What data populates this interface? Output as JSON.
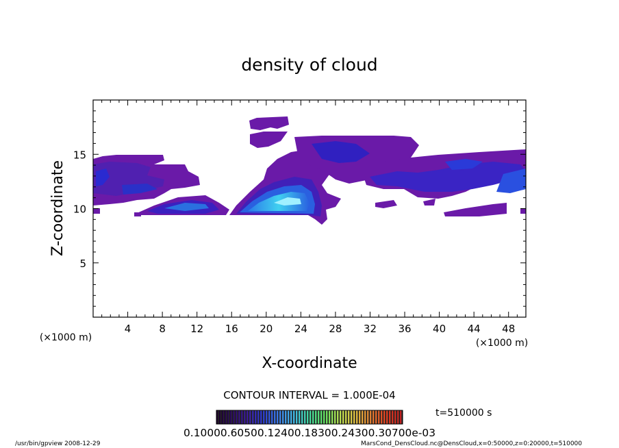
{
  "chart_data": {
    "type": "heatmap",
    "title": "density of cloud",
    "xlabel": "X-coordinate",
    "ylabel": "Z-coordinate",
    "x_unit": "(×1000 m)",
    "y_unit": "(×1000 m)",
    "xlim": [
      0,
      50
    ],
    "ylim": [
      0,
      20
    ],
    "x_ticks": [
      "4",
      "8",
      "12",
      "16",
      "20",
      "24",
      "28",
      "32",
      "36",
      "40",
      "44",
      "48"
    ],
    "y_ticks": [
      "5",
      "10",
      "15"
    ],
    "contour_interval_label": "CONTOUR INTERVAL = 1.000E-04",
    "time_label": "t=510000 s",
    "colorbar_labels": "0.10000.60500.12400.18300.24300.30700e-03",
    "colormap": [
      "#1a0026",
      "#2a0a5e",
      "#3a1a9a",
      "#2a3ad0",
      "#3a7ae8",
      "#40b8e8",
      "#40d8a0",
      "#60e060",
      "#b8e050",
      "#e0c040",
      "#e08030",
      "#e04020",
      "#c02020"
    ],
    "cloud_colors": {
      "thin": "#6a1aa8",
      "thin2": "#5a20b8",
      "mid": "#2a2ad8",
      "dense": "#2a7ae8",
      "core": "#3ad0f0",
      "peak": "#9af0ff"
    },
    "regions": [
      {
        "level": "thin",
        "z_range": [
          10.5,
          14.8
        ],
        "x_range": [
          0,
          12
        ]
      },
      {
        "level": "thin",
        "z_range": [
          9.6,
          11.5
        ],
        "x_range": [
          5,
          16
        ]
      },
      {
        "level": "mid",
        "z_range": [
          9.8,
          10.8
        ],
        "x_range": [
          8,
          15
        ]
      },
      {
        "level": "thin",
        "z_range": [
          9.6,
          15.5
        ],
        "x_range": [
          16,
          30
        ]
      },
      {
        "level": "dense",
        "z_range": [
          9.7,
          12.5
        ],
        "x_range": [
          17,
          26
        ]
      },
      {
        "level": "core",
        "z_range": [
          10.3,
          11.4
        ],
        "x_range": [
          19,
          25
        ]
      },
      {
        "level": "thin",
        "z_range": [
          16.8,
          18.0
        ],
        "x_range": [
          18,
          22
        ]
      },
      {
        "level": "thin",
        "z_range": [
          10.5,
          16.3
        ],
        "x_range": [
          20,
          37
        ]
      },
      {
        "level": "thin",
        "z_range": [
          9.5,
          15.2
        ],
        "x_range": [
          38,
          50
        ]
      },
      {
        "level": "mid",
        "z_range": [
          11.0,
          13.5
        ],
        "x_range": [
          46,
          50
        ]
      }
    ],
    "grid": false
  },
  "footer": {
    "left": "/usr/bin/gpview  2008-12-29",
    "right": "MarsCond_DensCloud.nc@DensCloud,x=0:50000,z=0:20000,t=510000"
  }
}
